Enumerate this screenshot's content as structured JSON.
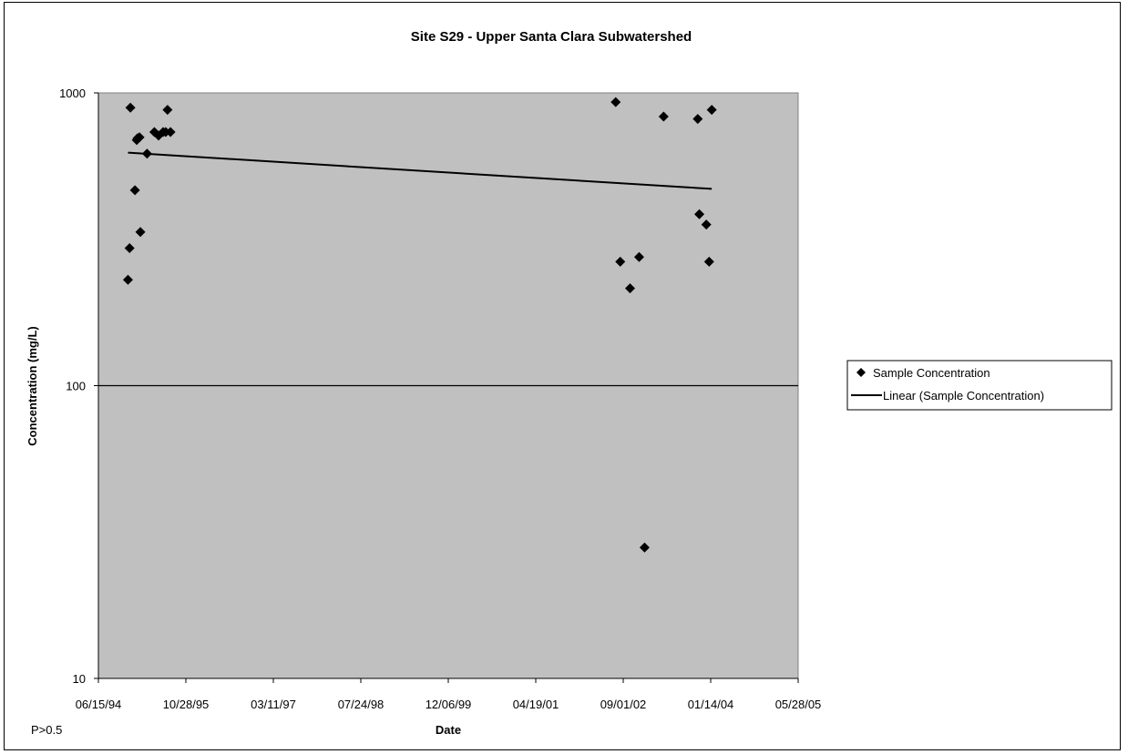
{
  "chart_data": {
    "type": "scatter",
    "title": "Site S29 - Upper Santa Clara Subwatershed",
    "xlabel": "Date",
    "ylabel": "Concentration (mg/L)",
    "y_scale": "log",
    "ylim": [
      10,
      1000
    ],
    "y_ticks": [
      "10",
      "100",
      "1000"
    ],
    "xlim": [
      "1994-06-15",
      "2005-05-28"
    ],
    "x_ticks": [
      "06/15/94",
      "10/28/95",
      "03/11/97",
      "07/24/98",
      "12/06/99",
      "04/19/01",
      "09/01/02",
      "01/14/04",
      "05/28/05"
    ],
    "grid": "major y gridline at 100",
    "plot_background": "#c0c0c0",
    "marker_color": "#000000",
    "legend_position": "right",
    "annotation": "P>0.5",
    "series": [
      {
        "name": "Sample Concentration",
        "kind": "scatter",
        "x": [
          "1994-12-15",
          "1994-12-01",
          "1994-12-10",
          "1995-01-25",
          "1995-01-10",
          "1995-02-10",
          "1995-01-20",
          "1995-02-05",
          "1995-03-20",
          "1995-05-01",
          "1995-05-25",
          "1995-06-20",
          "1995-07-15",
          "1995-07-05",
          "1995-08-01",
          "2002-07-20",
          "2002-08-15",
          "2002-10-10",
          "2002-12-01",
          "2003-01-01",
          "2003-04-20",
          "2003-11-01",
          "2003-11-10",
          "2003-12-20",
          "2004-01-05",
          "2004-01-20"
        ],
        "y": [
          890,
          230,
          295,
          700,
          465,
          335,
          690,
          705,
          620,
          735,
          715,
          735,
          875,
          735,
          735,
          930,
          265,
          215,
          275,
          28,
          830,
          815,
          385,
          355,
          265,
          875
        ]
      },
      {
        "name": "Linear (Sample Concentration)",
        "kind": "line",
        "x": [
          "1994-12-01",
          "2004-01-20"
        ],
        "y": [
          625,
          470
        ]
      }
    ]
  }
}
